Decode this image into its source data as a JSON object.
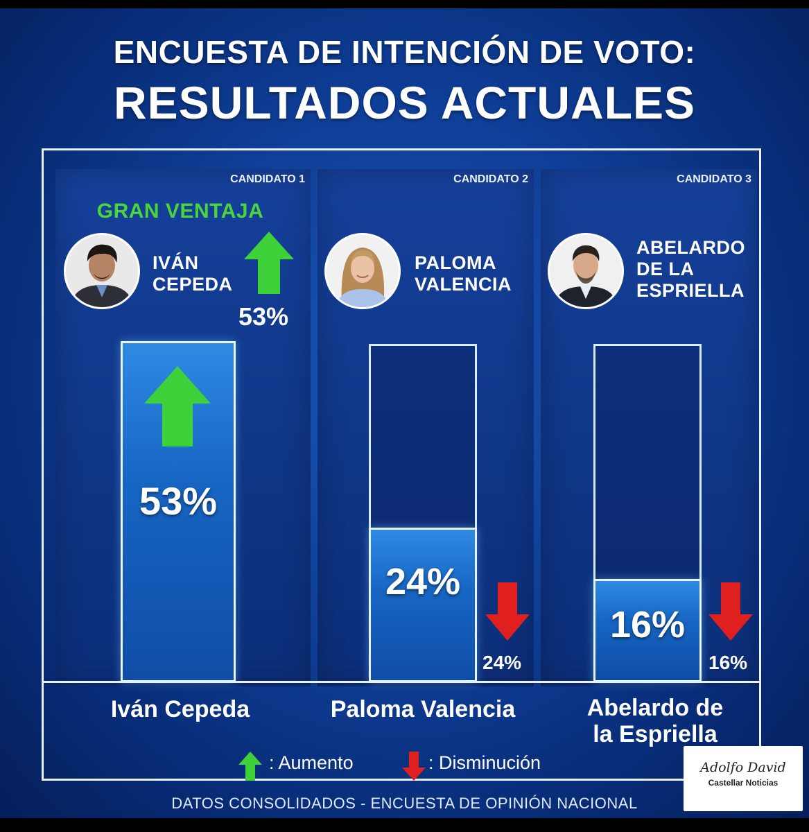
{
  "title": {
    "line1": "ENCUESTA DE INTENCIÓN DE VOTO:",
    "line2": "RESULTADOS ACTUALES"
  },
  "chart_data": {
    "type": "bar",
    "title": "ENCUESTA DE INTENCIÓN DE VOTO: RESULTADOS ACTUALES",
    "categories": [
      "Iván Cepeda",
      "Paloma Valencia",
      "Abelardo de la Espriella"
    ],
    "values": [
      53,
      24,
      16
    ],
    "unit": "%",
    "trend": [
      "up",
      "down",
      "down"
    ],
    "ylim": [
      0,
      60
    ]
  },
  "candidates": [
    {
      "tag": "CANDIDATO 1",
      "name_line1": "IVÁN",
      "name_line2": "CEPEDA",
      "name_line3": "",
      "side_pct": "53%",
      "bar_label": "53%",
      "bottom_line1": "Iván Cepeda",
      "bottom_line2": "",
      "highlight": "GRAN VENTAJA",
      "trend": "up"
    },
    {
      "tag": "CANDIDATO 2",
      "name_line1": "PALOMA",
      "name_line2": "VALENCIA",
      "name_line3": "",
      "side_pct": "24%",
      "bar_label": "24%",
      "bottom_line1": "Paloma Valencia",
      "bottom_line2": "",
      "trend": "down"
    },
    {
      "tag": "CANDIDATO 3",
      "name_line1": "ABELARDO",
      "name_line2": "DE LA",
      "name_line3": "ESPRIELLA",
      "side_pct": "16%",
      "bar_label": "16%",
      "bottom_line1": "Abelardo de",
      "bottom_line2": "la Espriella",
      "trend": "down"
    }
  ],
  "legend": {
    "up_label": ": Aumento",
    "down_label": ": Disminución",
    "up_color": "#3fd13a",
    "down_color": "#e0201e"
  },
  "footer": "DATOS CONSOLIDADOS - ENCUESTA DE OPINIÓN NACIONAL",
  "watermark": {
    "signature": "Adolfo David",
    "brand": "Castellar Noticias"
  }
}
